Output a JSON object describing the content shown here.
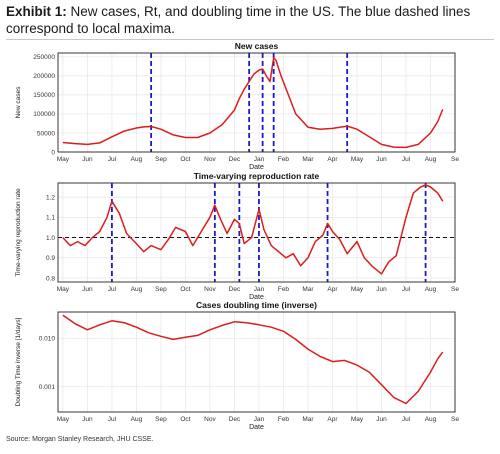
{
  "exhibit": {
    "label": "Exhibit 1:",
    "title": "New cases, Rt, and doubling time in the US. The blue dashed lines correspond to local maxima."
  },
  "source": "Source: Morgan Stanley Research, JHU CSSE.",
  "colors": {
    "line": "#dd1c1c",
    "maxima": "#1a1ac8",
    "grid": "#e6e6e6",
    "frame": "#222222"
  },
  "chart_data": [
    {
      "type": "line",
      "title": "New cases",
      "xlabel": "Date",
      "ylabel": "New cases",
      "x_ticks": [
        "May",
        "Jun",
        "Jul",
        "Aug",
        "Sep",
        "Oct",
        "Nov",
        "Dec",
        "Jan",
        "Feb",
        "Mar",
        "Apr",
        "May",
        "Jun",
        "Jul",
        "Aug",
        "Se"
      ],
      "y_ticks": [
        "0",
        "50000",
        "100000",
        "150000",
        "200000",
        "250000"
      ],
      "ylim": [
        0,
        260000
      ],
      "local_maxima_months": [
        3.6,
        7.6,
        8.15,
        8.6,
        11.6
      ],
      "series": [
        {
          "x": [
            0,
            0.5,
            1,
            1.5,
            2,
            2.5,
            3,
            3.3,
            3.6,
            4,
            4.5,
            5,
            5.5,
            6,
            6.5,
            7,
            7.2,
            7.4,
            7.6,
            7.8,
            8,
            8.15,
            8.3,
            8.45,
            8.6,
            8.7,
            8.9,
            9.2,
            9.5,
            10,
            10.5,
            11,
            11.3,
            11.6,
            12,
            12.5,
            13,
            13.5,
            14,
            14.5,
            15,
            15.3,
            15.5
          ],
          "y": [
            25000,
            22000,
            20000,
            24000,
            40000,
            55000,
            63000,
            66000,
            67000,
            60000,
            45000,
            38000,
            38000,
            50000,
            72000,
            110000,
            140000,
            165000,
            185000,
            205000,
            215000,
            218000,
            200000,
            185000,
            248000,
            240000,
            200000,
            150000,
            100000,
            65000,
            60000,
            62000,
            65000,
            68000,
            60000,
            40000,
            20000,
            13000,
            12000,
            20000,
            50000,
            80000,
            112000
          ]
        }
      ]
    },
    {
      "type": "line",
      "title": "Time-varying reproduction rate",
      "xlabel": "Date",
      "ylabel": "Time-varying reproduction rate",
      "x_ticks": [
        "May",
        "Jun",
        "Jul",
        "Aug",
        "Sep",
        "Oct",
        "Nov",
        "Dec",
        "Jan",
        "Feb",
        "Mar",
        "Apr",
        "May",
        "Jun",
        "Jul",
        "Aug",
        "Se"
      ],
      "y_ticks": [
        "0.8",
        "0.9",
        "1.0",
        "1.1",
        "1.2"
      ],
      "ylim": [
        0.78,
        1.27
      ],
      "reference_line": 1.0,
      "local_maxima_months": [
        2.0,
        6.2,
        7.2,
        8.0,
        10.8,
        14.8
      ],
      "series": [
        {
          "x": [
            0,
            0.3,
            0.6,
            0.9,
            1.2,
            1.5,
            1.8,
            2.0,
            2.3,
            2.6,
            3.0,
            3.3,
            3.6,
            4.0,
            4.3,
            4.6,
            5.0,
            5.3,
            5.6,
            6.0,
            6.2,
            6.4,
            6.7,
            7.0,
            7.2,
            7.4,
            7.7,
            8.0,
            8.2,
            8.5,
            8.8,
            9.1,
            9.4,
            9.7,
            10.0,
            10.3,
            10.6,
            10.8,
            11.0,
            11.3,
            11.6,
            12.0,
            12.3,
            12.6,
            13.0,
            13.3,
            13.6,
            14.0,
            14.3,
            14.6,
            14.8,
            15.0,
            15.3,
            15.5
          ],
          "y": [
            1.0,
            0.96,
            0.98,
            0.96,
            1.0,
            1.03,
            1.1,
            1.18,
            1.12,
            1.02,
            0.97,
            0.93,
            0.96,
            0.94,
            0.99,
            1.05,
            1.03,
            0.96,
            1.02,
            1.1,
            1.16,
            1.1,
            1.02,
            1.09,
            1.07,
            0.97,
            1.0,
            1.14,
            1.04,
            0.96,
            0.93,
            0.9,
            0.92,
            0.86,
            0.9,
            0.98,
            1.01,
            1.07,
            1.03,
            0.99,
            0.92,
            0.98,
            0.9,
            0.86,
            0.82,
            0.88,
            0.91,
            1.1,
            1.22,
            1.25,
            1.26,
            1.25,
            1.22,
            1.18
          ]
        }
      ]
    },
    {
      "type": "line",
      "title": "Cases doubling time (inverse)",
      "xlabel": "Date",
      "ylabel": "Doubling Time inverse [1/days]",
      "x_ticks": [
        "May",
        "Jun",
        "Jul",
        "Aug",
        "Sep",
        "Oct",
        "Nov",
        "Dec",
        "Jan",
        "Feb",
        "Mar",
        "Apr",
        "May",
        "Jun",
        "Jul",
        "Aug",
        "Se"
      ],
      "y_ticks": [
        "0.001",
        "0.010"
      ],
      "y_scale": "log",
      "ylim": [
        0.0003,
        0.035
      ],
      "series": [
        {
          "x": [
            0,
            0.5,
            1,
            1.5,
            2,
            2.5,
            3,
            3.5,
            4,
            4.5,
            5,
            5.5,
            6,
            6.5,
            7,
            7.5,
            8,
            8.5,
            9,
            9.5,
            10,
            10.5,
            11,
            11.5,
            12,
            12.5,
            13,
            13.5,
            14,
            14.5,
            15,
            15.3,
            15.5
          ],
          "y": [
            0.03,
            0.02,
            0.015,
            0.019,
            0.023,
            0.021,
            0.017,
            0.013,
            0.011,
            0.0095,
            0.0105,
            0.0115,
            0.015,
            0.0185,
            0.022,
            0.021,
            0.019,
            0.017,
            0.014,
            0.0095,
            0.006,
            0.0042,
            0.0033,
            0.0035,
            0.0028,
            0.002,
            0.0011,
            0.0006,
            0.00045,
            0.0008,
            0.002,
            0.0038,
            0.0052
          ]
        }
      ]
    }
  ]
}
